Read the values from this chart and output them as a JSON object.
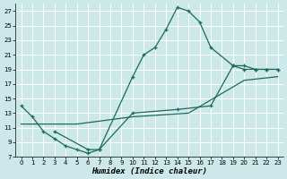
{
  "xlabel": "Humidex (Indice chaleur)",
  "bg_color": "#cce8e8",
  "grid_color": "#ffffff",
  "line_color": "#1a6b5a",
  "xlim": [
    -0.5,
    23.5
  ],
  "ylim": [
    7,
    28
  ],
  "xticks": [
    0,
    1,
    2,
    3,
    4,
    5,
    6,
    7,
    8,
    9,
    10,
    11,
    12,
    13,
    14,
    15,
    16,
    17,
    18,
    19,
    20,
    21,
    22,
    23
  ],
  "yticks": [
    7,
    9,
    11,
    13,
    15,
    17,
    19,
    21,
    23,
    25,
    27
  ],
  "curve1_x": [
    0,
    1,
    2,
    3,
    4,
    5,
    6,
    7,
    10,
    11,
    12,
    13,
    14,
    15,
    16,
    17,
    19,
    20,
    21,
    22,
    23
  ],
  "curve1_y": [
    14,
    12.5,
    10.5,
    9.5,
    8.5,
    8,
    7.5,
    8,
    18,
    21,
    22,
    24.5,
    27.5,
    27,
    25.5,
    22,
    19.5,
    19,
    19,
    19,
    19
  ],
  "curve2_x": [
    3,
    6,
    7,
    10,
    14,
    17,
    19,
    20,
    21,
    22,
    23
  ],
  "curve2_y": [
    10.5,
    8,
    8,
    13,
    13.5,
    14,
    19.5,
    19.5,
    19,
    19,
    19
  ],
  "curve3_x": [
    0,
    5,
    10,
    15,
    20,
    23
  ],
  "curve3_y": [
    11.5,
    11.5,
    12.5,
    13,
    17.5,
    18
  ]
}
